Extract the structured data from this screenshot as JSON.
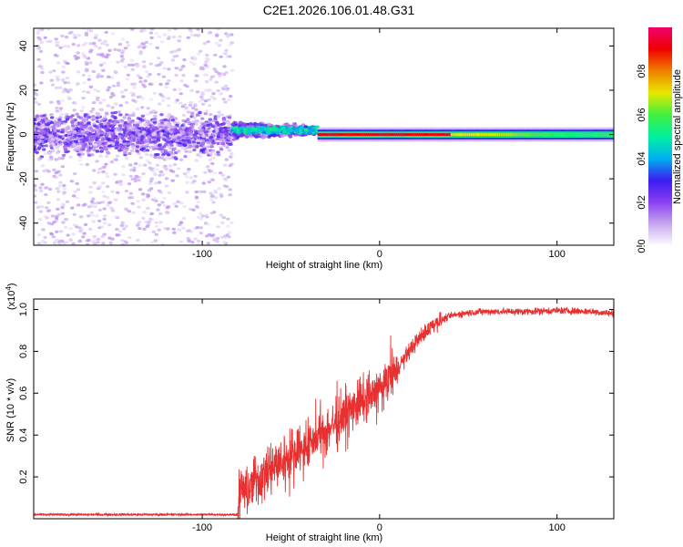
{
  "title": "C2E1.2026.106.01.48.G31",
  "chart_data": [
    {
      "type": "heatmap",
      "name": "spectrogram",
      "xlabel": "Height of straight line (km)",
      "ylabel": "Frequency (Hz)",
      "xlim": [
        -195,
        132
      ],
      "ylim": [
        -50,
        48
      ],
      "xticks": [
        -100,
        0,
        100
      ],
      "yticks": [
        -40,
        -20,
        0,
        20,
        40
      ],
      "colorbar": {
        "label": "Normalized spectral amplitude",
        "range": [
          0,
          1
        ],
        "ticks": [
          0.0,
          0.2,
          0.4,
          0.6,
          0.8
        ],
        "tick_labels": [
          "0.0",
          "0.2",
          "0.4",
          "0.6",
          "0.8"
        ],
        "colors": [
          "#ffffff",
          "#c8a8f0",
          "#8a40f0",
          "#3a1cf0",
          "#00b0f0",
          "#00f0a0",
          "#40f040",
          "#e8e800",
          "#f08000",
          "#f00000",
          "#f0006a"
        ]
      },
      "regions": [
        {
          "x": [
            -195,
            -83
          ],
          "description": "broadband scatter",
          "freq_spread": [
            -50,
            48
          ],
          "core_spread": [
            -12,
            10
          ],
          "amplitude": [
            0.05,
            0.3
          ]
        },
        {
          "x": [
            -83,
            -35
          ],
          "description": "narrowing band",
          "center": 2,
          "half_width": 5,
          "amplitude": [
            0.3,
            0.5
          ]
        },
        {
          "x": [
            -35,
            132
          ],
          "description": "narrow carrier line",
          "center": 0,
          "half_width": 3,
          "amplitude": [
            0.55,
            0.95
          ]
        }
      ]
    },
    {
      "type": "line",
      "name": "snr",
      "xlabel": "Height of straight line (km)",
      "ylabel": "SNR (10 * v/v)",
      "yscale_label": "(x10",
      "yscale_exp": "4",
      "yscale_close": ")",
      "xlim": [
        -195,
        132
      ],
      "ylim": [
        0,
        1.05
      ],
      "xticks": [
        -100,
        0,
        100
      ],
      "yticks": [
        0.2,
        0.4,
        0.6,
        0.8,
        1.0
      ],
      "color": "#e83030",
      "series": [
        {
          "name": "SNR",
          "x": [
            -195,
            -80,
            -78,
            -70,
            -60,
            -50,
            -40,
            -30,
            -20,
            -10,
            0,
            10,
            20,
            30,
            40,
            50,
            60,
            80,
            100,
            120,
            132
          ],
          "y": [
            0.02,
            0.02,
            0.12,
            0.18,
            0.24,
            0.3,
            0.36,
            0.42,
            0.5,
            0.56,
            0.62,
            0.72,
            0.84,
            0.93,
            0.97,
            0.985,
            0.99,
            0.99,
            0.995,
            0.99,
            0.98
          ]
        }
      ]
    }
  ]
}
